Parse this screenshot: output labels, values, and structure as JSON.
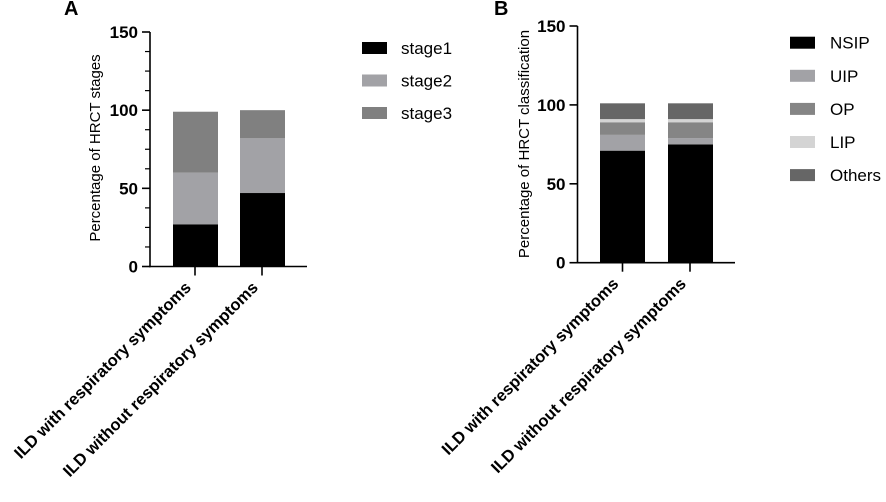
{
  "chart_data": [
    {
      "panel": "A",
      "type": "bar",
      "stacked": true,
      "title": "",
      "xlabel": "",
      "ylabel": "Percentage of  HRCT stages",
      "ylim": [
        0,
        150
      ],
      "yticks": [
        0,
        50,
        100,
        150
      ],
      "minor_tick_step": 12.5,
      "grid": false,
      "legend_position": "right",
      "categories": [
        "ILD with respiratory symptoms",
        "ILD without respiratory symptoms"
      ],
      "series": [
        {
          "name": "stage1",
          "color": "#000000",
          "values": [
            27,
            47
          ]
        },
        {
          "name": "stage2",
          "color": "#a2a2a6",
          "values": [
            33,
            35
          ]
        },
        {
          "name": "stage3",
          "color": "#808080",
          "values": [
            39,
            18
          ]
        }
      ]
    },
    {
      "panel": "B",
      "type": "bar",
      "stacked": true,
      "title": "",
      "xlabel": "",
      "ylabel": "Percentage of  HRCT classification",
      "ylim": [
        0,
        150
      ],
      "yticks": [
        0,
        50,
        100,
        150
      ],
      "grid": false,
      "legend_position": "right",
      "categories": [
        "ILD with respiratory symptoms",
        "ILD without respiratory symptoms"
      ],
      "series": [
        {
          "name": "NSIP",
          "color": "#000000",
          "values": [
            71,
            75
          ]
        },
        {
          "name": "UIP",
          "color": "#a2a2a6",
          "values": [
            10,
            4
          ]
        },
        {
          "name": "OP",
          "color": "#858585",
          "values": [
            8,
            10
          ]
        },
        {
          "name": "LIP",
          "color": "#d4d4d4",
          "values": [
            2,
            2
          ]
        },
        {
          "name": "Others",
          "color": "#666666",
          "values": [
            10,
            10
          ]
        }
      ]
    }
  ]
}
